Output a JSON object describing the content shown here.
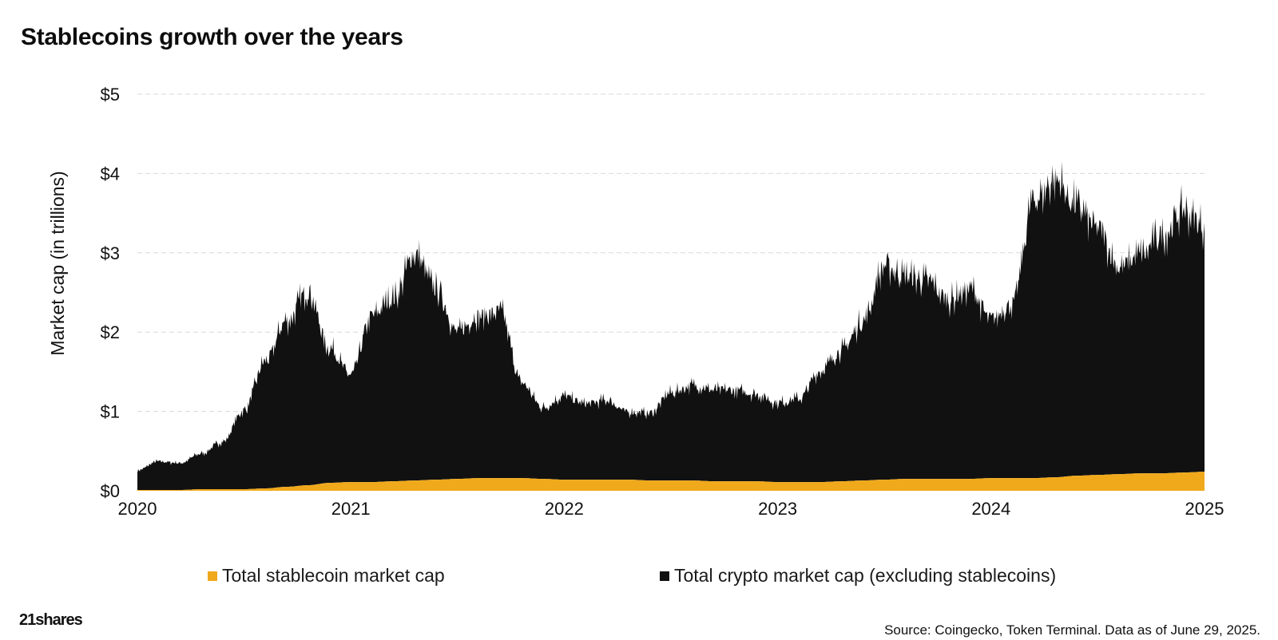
{
  "title": "Stablecoins growth over the years",
  "source": "Source: Coingecko, Token Terminal. Data as of June 29, 2025.",
  "logo": {
    "text": "21shares",
    "mark": ""
  },
  "colors": {
    "stablecoin": "#F0A91B",
    "crypto": "#111111",
    "grid": "#d9d9d9"
  },
  "legend": [
    {
      "label": "Total stablecoin market cap",
      "color": "#F0A91B"
    },
    {
      "label": "Total crypto market cap (excluding stablecoins)",
      "color": "#111111"
    }
  ],
  "chart_data": {
    "type": "area",
    "stacked": true,
    "title": "Stablecoins growth over the years",
    "xlabel": "",
    "ylabel": "Market cap (in trillions)",
    "xlim": [
      2020,
      2025
    ],
    "ylim": [
      0,
      5
    ],
    "x_ticks": [
      "2020",
      "2021",
      "2022",
      "2023",
      "2024",
      "2025"
    ],
    "y_ticks": [
      "$0",
      "$1",
      "$2",
      "$3",
      "$4",
      "$5"
    ],
    "y_tick_values": [
      0,
      1,
      2,
      3,
      4,
      5
    ],
    "grid": true,
    "legend_position": "bottom",
    "x": [
      2020.0,
      2020.1,
      2020.2,
      2020.3,
      2020.4,
      2020.5,
      2020.6,
      2020.7,
      2020.8,
      2020.9,
      2021.0,
      2021.1,
      2021.2,
      2021.3,
      2021.4,
      2021.5,
      2021.6,
      2021.7,
      2021.8,
      2021.9,
      2022.0,
      2022.1,
      2022.2,
      2022.3,
      2022.4,
      2022.5,
      2022.6,
      2022.7,
      2022.8,
      2022.9,
      2023.0,
      2023.1,
      2023.2,
      2023.3,
      2023.4,
      2023.5,
      2023.6,
      2023.7,
      2023.8,
      2023.9,
      2024.0,
      2024.1,
      2024.2,
      2024.3,
      2024.4,
      2024.5,
      2024.6,
      2024.7,
      2024.8,
      2024.9,
      2025.0
    ],
    "series": [
      {
        "name": "Total stablecoin market cap",
        "values": [
          0.01,
          0.01,
          0.01,
          0.02,
          0.02,
          0.02,
          0.03,
          0.05,
          0.07,
          0.1,
          0.11,
          0.11,
          0.12,
          0.13,
          0.14,
          0.15,
          0.16,
          0.16,
          0.16,
          0.15,
          0.14,
          0.14,
          0.14,
          0.14,
          0.13,
          0.13,
          0.13,
          0.12,
          0.12,
          0.12,
          0.11,
          0.11,
          0.11,
          0.12,
          0.13,
          0.14,
          0.15,
          0.15,
          0.15,
          0.15,
          0.16,
          0.16,
          0.16,
          0.17,
          0.19,
          0.2,
          0.21,
          0.22,
          0.22,
          0.23,
          0.24
        ]
      },
      {
        "name": "Total crypto market cap (excluding stablecoins)",
        "values": [
          0.25,
          0.36,
          0.34,
          0.45,
          0.6,
          1.0,
          1.6,
          2.1,
          2.45,
          1.7,
          1.35,
          2.1,
          2.3,
          2.85,
          2.4,
          1.85,
          2.05,
          2.1,
          1.2,
          0.9,
          1.05,
          0.95,
          1.0,
          0.85,
          0.85,
          1.1,
          1.2,
          1.15,
          1.15,
          1.1,
          1.0,
          1.05,
          1.4,
          1.65,
          2.0,
          2.7,
          2.55,
          2.5,
          2.25,
          2.4,
          2.0,
          2.2,
          3.5,
          3.75,
          3.4,
          3.1,
          2.6,
          2.75,
          3.0,
          3.3,
          3.1
        ]
      }
    ]
  }
}
